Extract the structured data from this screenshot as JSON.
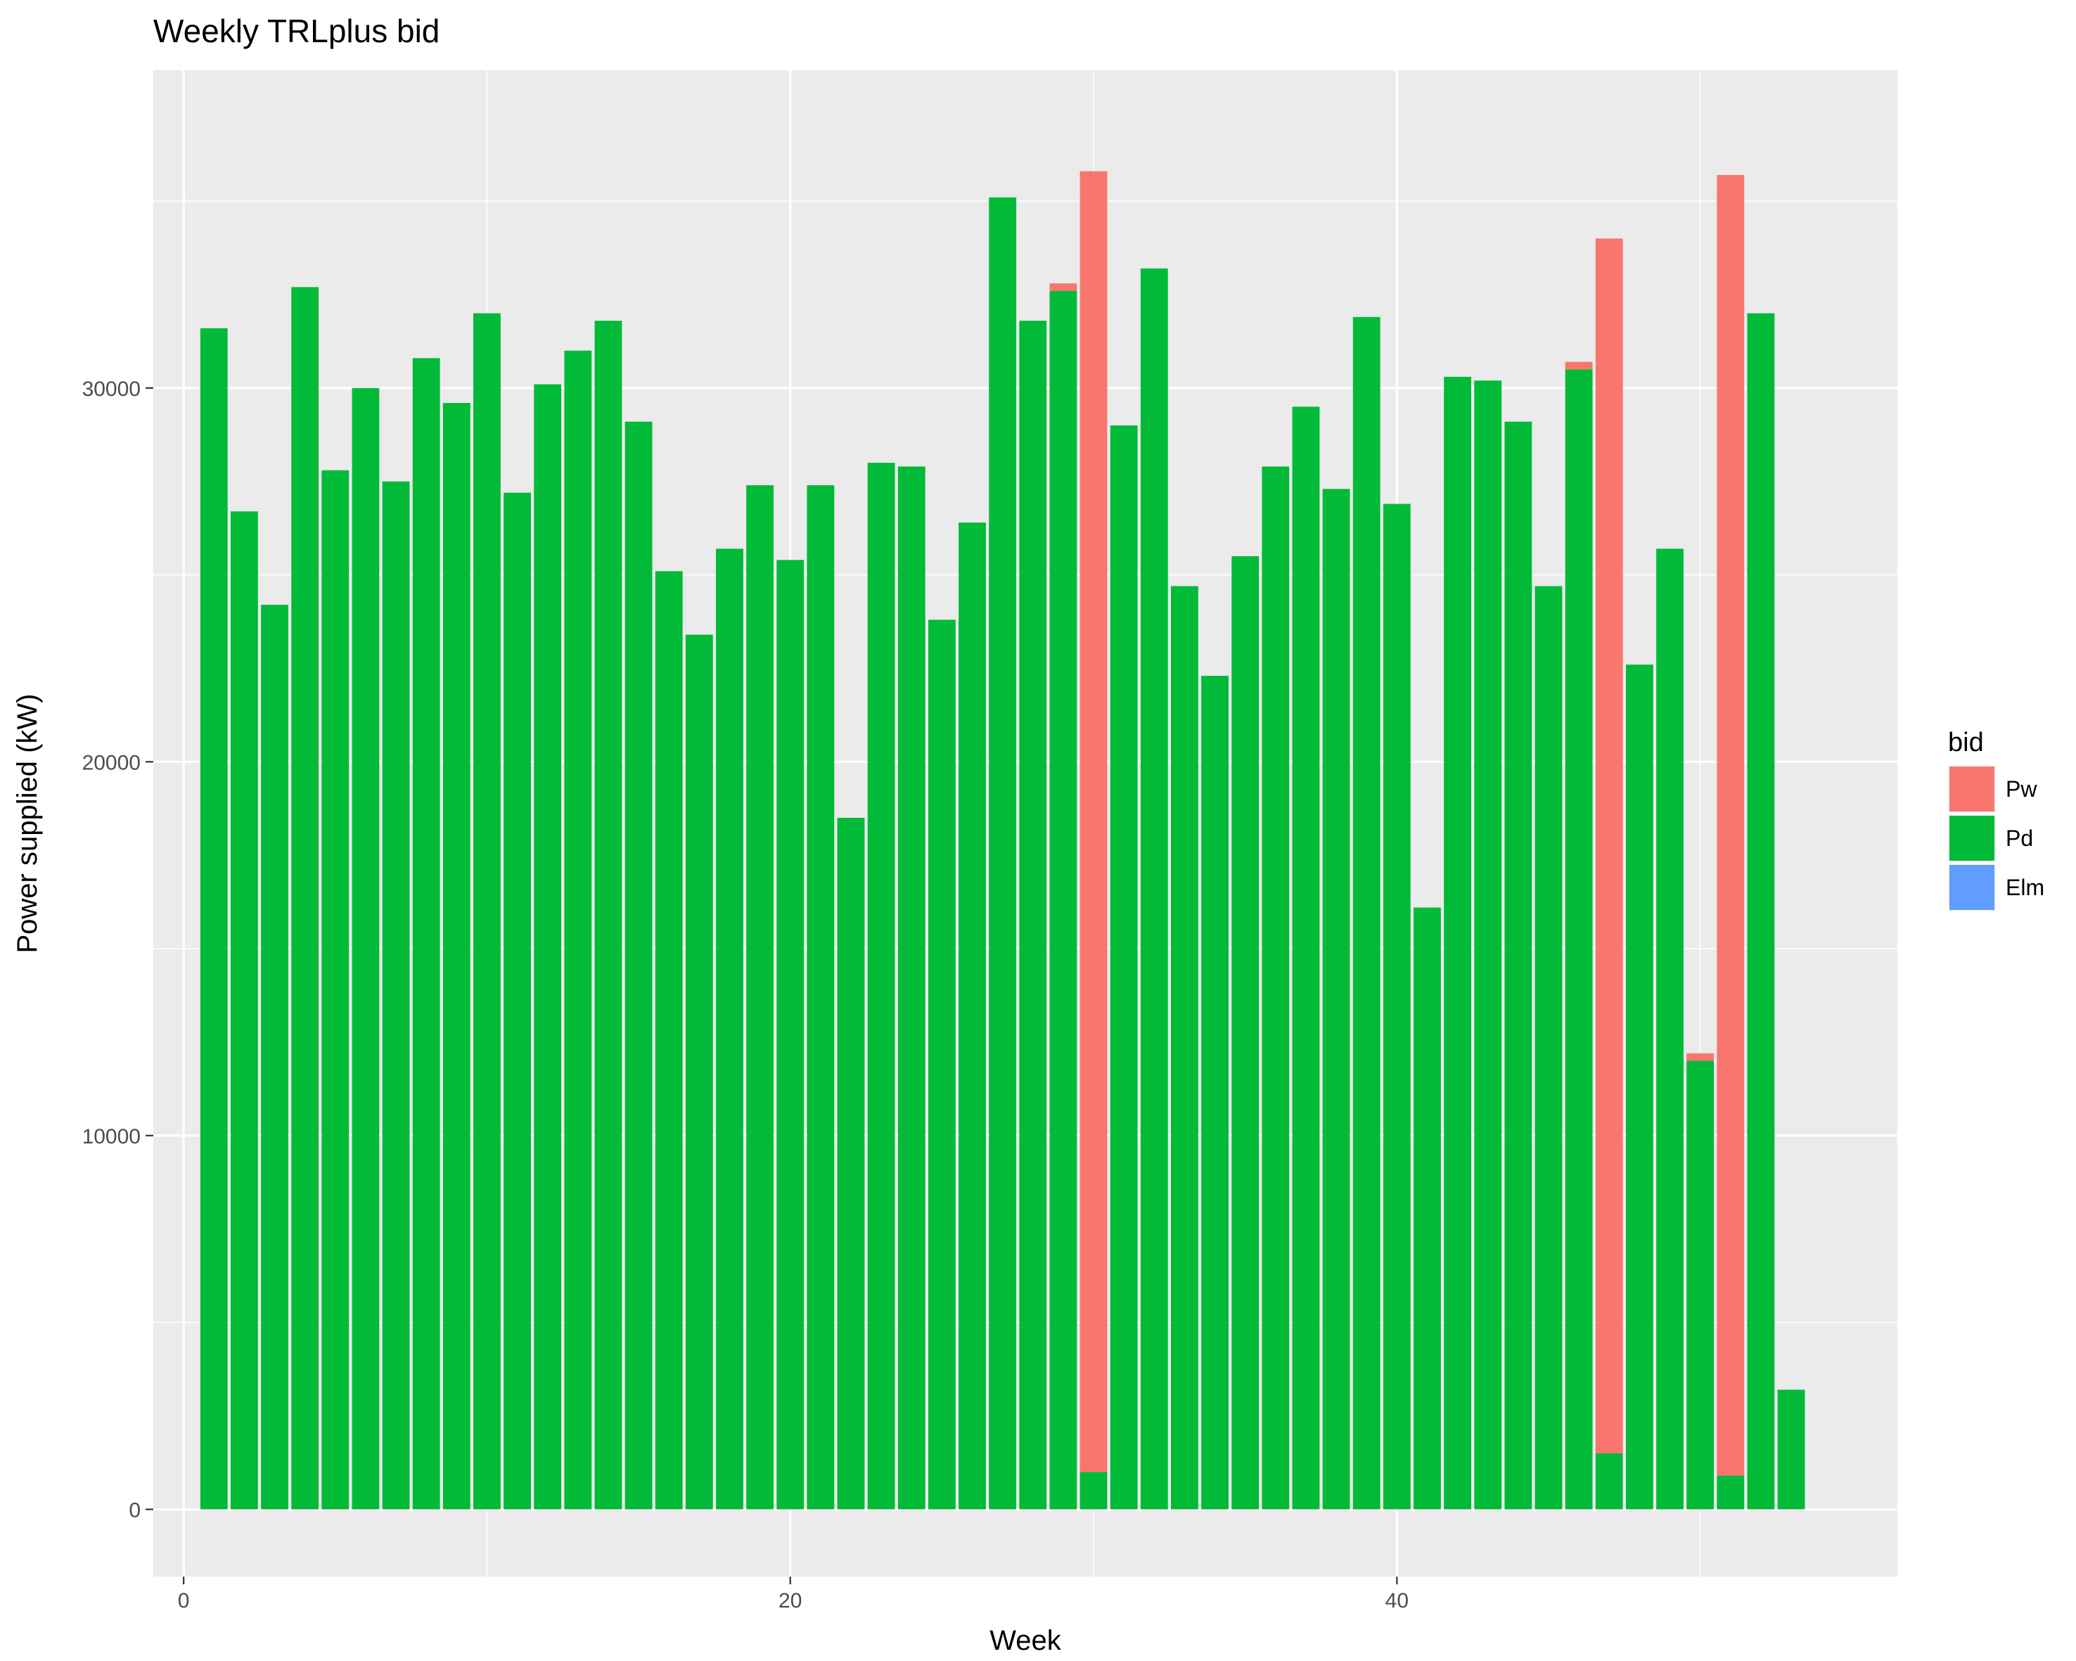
{
  "chart_data": {
    "type": "bar",
    "stacked": true,
    "title": "Weekly TRLplus bid",
    "xlabel": "Week",
    "ylabel": "Power supplied (kW)",
    "xlim": [
      -1,
      56.5
    ],
    "ylim": [
      -1800,
      38500
    ],
    "x_ticks": [
      0,
      20,
      40
    ],
    "y_ticks": [
      0,
      10000,
      20000,
      30000
    ],
    "grid": true,
    "legend": {
      "title": "bid",
      "position": "right"
    },
    "x": [
      1,
      2,
      3,
      4,
      5,
      6,
      7,
      8,
      9,
      10,
      11,
      12,
      13,
      14,
      15,
      16,
      17,
      18,
      19,
      20,
      21,
      22,
      23,
      24,
      25,
      26,
      27,
      28,
      29,
      30,
      31,
      32,
      33,
      34,
      35,
      36,
      37,
      38,
      39,
      40,
      41,
      42,
      43,
      44,
      45,
      46,
      47,
      48,
      49,
      50,
      51,
      52,
      53
    ],
    "series": [
      {
        "name": "Pd",
        "color": "#00BA38",
        "values": [
          31600,
          26700,
          24200,
          32700,
          27800,
          30000,
          27500,
          30800,
          29600,
          32000,
          27200,
          30100,
          31000,
          31800,
          29100,
          25100,
          23400,
          25700,
          27400,
          25400,
          27400,
          18500,
          28000,
          27900,
          23800,
          26400,
          35100,
          31800,
          32600,
          1000,
          29000,
          33200,
          24700,
          22300,
          25500,
          27900,
          29500,
          27300,
          31900,
          26900,
          16100,
          30300,
          30200,
          29100,
          24700,
          30500,
          1500,
          22600,
          25700,
          12000,
          900,
          32000,
          3200
        ]
      },
      {
        "name": "Pw",
        "color": "#F8766D",
        "values": [
          0,
          0,
          0,
          0,
          0,
          0,
          0,
          0,
          0,
          0,
          0,
          0,
          0,
          0,
          0,
          0,
          0,
          0,
          0,
          0,
          0,
          0,
          0,
          0,
          0,
          0,
          0,
          0,
          200,
          34800,
          0,
          0,
          0,
          0,
          0,
          0,
          0,
          0,
          0,
          0,
          0,
          0,
          0,
          0,
          0,
          200,
          32500,
          0,
          0,
          200,
          34800,
          0,
          0
        ]
      },
      {
        "name": "Elm",
        "color": "#619CFF",
        "values": [
          0,
          0,
          0,
          0,
          0,
          0,
          0,
          0,
          0,
          0,
          0,
          0,
          0,
          0,
          0,
          0,
          0,
          0,
          0,
          0,
          0,
          0,
          0,
          0,
          0,
          0,
          0,
          0,
          0,
          0,
          0,
          0,
          0,
          0,
          0,
          0,
          0,
          0,
          0,
          0,
          0,
          0,
          0,
          0,
          0,
          0,
          0,
          0,
          0,
          0,
          0,
          0,
          0
        ]
      }
    ],
    "legend_order": [
      "Pw",
      "Pd",
      "Elm"
    ]
  }
}
